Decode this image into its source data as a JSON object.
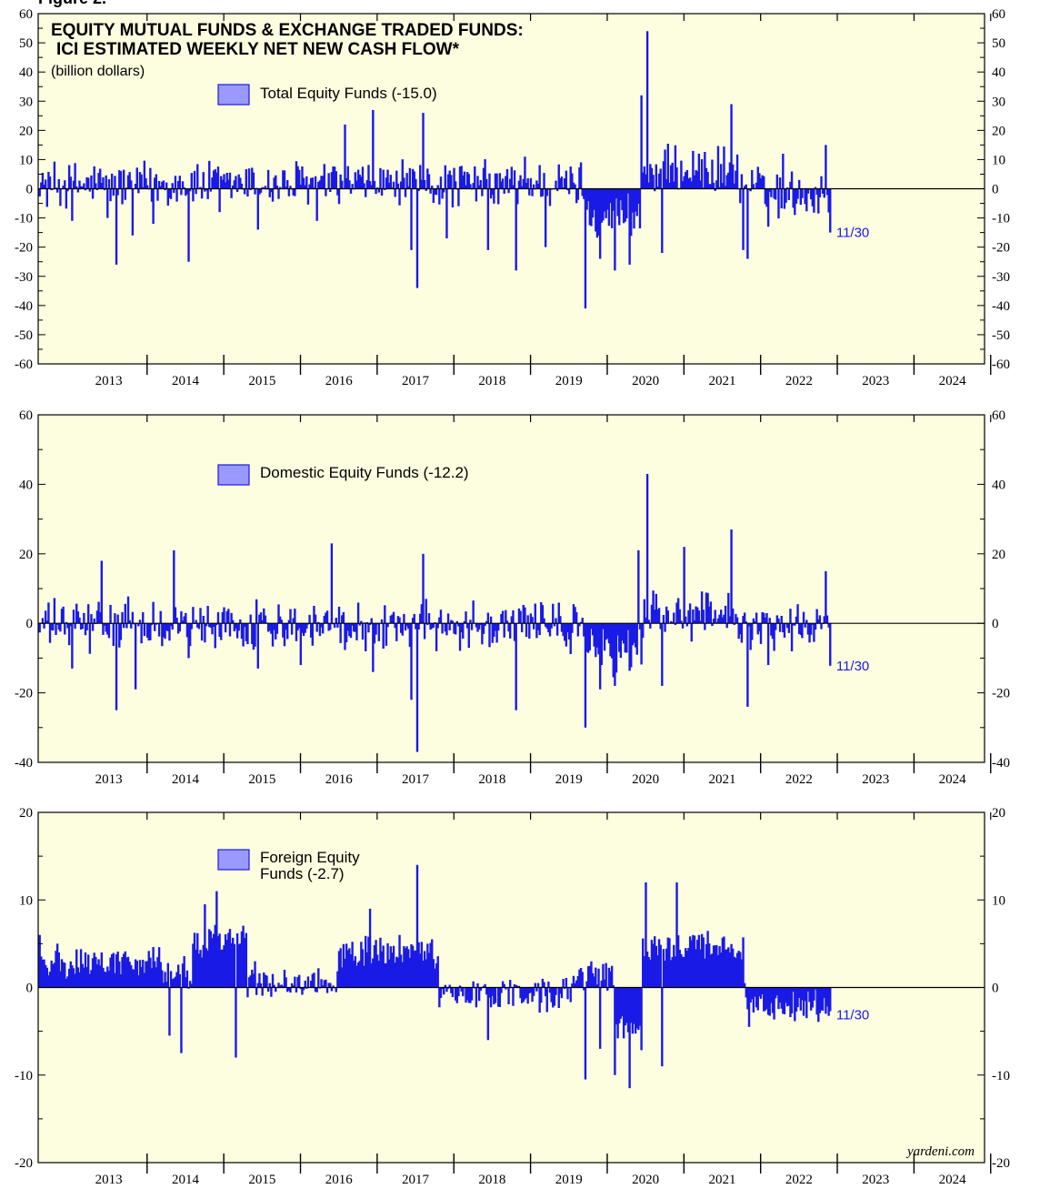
{
  "figure_label": "Figure 2.",
  "credit": "yardeni.com",
  "colors": {
    "bar": "#1a1ae6",
    "panel_bg": "#fdfde0",
    "legend_fill": "#9999ff"
  },
  "chart_data": [
    {
      "type": "bar",
      "title": "EQUITY MUTUAL FUNDS & EXCHANGE TRADED FUNDS:",
      "title2": "ICI ESTIMATED WEEKLY NET NEW CASH FLOW*",
      "subtitle": "(billion dollars)",
      "legend": "Total Equity Funds (-15.0)",
      "end_label": "11/30",
      "ylim": [
        -60,
        60
      ],
      "yticks": [
        60,
        50,
        40,
        30,
        20,
        10,
        0,
        -10,
        -20,
        -30,
        -40,
        -50,
        -60
      ],
      "years": [
        "2013",
        "2014",
        "2015",
        "2016",
        "2017",
        "2018",
        "2019",
        "2020",
        "2021",
        "2022",
        "2023",
        "2024"
      ],
      "xlim": [
        2012.58,
        2024.92
      ],
      "last_date": 2022.915,
      "last_value": -15.0,
      "base_level": 1.5,
      "noise_amp": 7,
      "key_points": [
        [
          2013.02,
          -11
        ],
        [
          2013.48,
          -10
        ],
        [
          2013.6,
          -26
        ],
        [
          2013.82,
          -16
        ],
        [
          2014.08,
          -12
        ],
        [
          2014.55,
          -25
        ],
        [
          2014.95,
          -8
        ],
        [
          2015.45,
          -14
        ],
        [
          2016.22,
          -11
        ],
        [
          2016.58,
          22
        ],
        [
          2016.95,
          27
        ],
        [
          2017.45,
          -21
        ],
        [
          2017.52,
          -34
        ],
        [
          2017.6,
          26
        ],
        [
          2017.9,
          -17
        ],
        [
          2018.45,
          -21
        ],
        [
          2018.82,
          -28
        ],
        [
          2018.93,
          11
        ],
        [
          2019.2,
          -20
        ],
        [
          2019.72,
          -41
        ],
        [
          2019.9,
          -24
        ],
        [
          2020.1,
          -28
        ],
        [
          2020.3,
          -26
        ],
        [
          2020.45,
          32
        ],
        [
          2020.52,
          54
        ],
        [
          2020.72,
          -22
        ],
        [
          2021.2,
          12
        ],
        [
          2021.62,
          29
        ],
        [
          2021.78,
          -21
        ],
        [
          2021.83,
          -24
        ],
        [
          2022.1,
          -13
        ],
        [
          2022.3,
          12
        ],
        [
          2022.85,
          15
        ]
      ]
    },
    {
      "type": "bar",
      "legend": "Domestic Equity Funds (-12.2)",
      "end_label": "11/30",
      "ylim": [
        -40,
        60
      ],
      "yticks": [
        60,
        40,
        20,
        0,
        -20,
        -40
      ],
      "years": [
        "2013",
        "2014",
        "2015",
        "2016",
        "2017",
        "2018",
        "2019",
        "2020",
        "2021",
        "2022",
        "2023",
        "2024"
      ],
      "xlim": [
        2012.58,
        2024.92
      ],
      "last_date": 2022.915,
      "last_value": -12.2,
      "base_level": -0.5,
      "noise_amp": 6,
      "key_points": [
        [
          2013.02,
          -13
        ],
        [
          2013.4,
          18
        ],
        [
          2013.6,
          -25
        ],
        [
          2013.85,
          -19
        ],
        [
          2014.35,
          21
        ],
        [
          2014.55,
          -10
        ],
        [
          2015.45,
          -13
        ],
        [
          2016.0,
          -12
        ],
        [
          2016.4,
          23
        ],
        [
          2016.95,
          -14
        ],
        [
          2017.45,
          -22
        ],
        [
          2017.52,
          -37
        ],
        [
          2017.6,
          20
        ],
        [
          2018.82,
          -25
        ],
        [
          2019.72,
          -30
        ],
        [
          2019.9,
          -19
        ],
        [
          2020.1,
          -18
        ],
        [
          2020.4,
          21
        ],
        [
          2020.52,
          43
        ],
        [
          2020.72,
          -18
        ],
        [
          2021.0,
          22
        ],
        [
          2021.62,
          27
        ],
        [
          2021.83,
          -24
        ],
        [
          2022.1,
          -12
        ],
        [
          2022.85,
          15
        ]
      ]
    },
    {
      "type": "bar",
      "legend": "Foreign Equity",
      "legend2": "Funds (-2.7)",
      "end_label": "11/30",
      "ylim": [
        -20,
        20
      ],
      "yticks": [
        20,
        10,
        0,
        -10,
        -20
      ],
      "years": [
        "2013",
        "2014",
        "2015",
        "2016",
        "2017",
        "2018",
        "2019",
        "2020",
        "2021",
        "2022",
        "2023",
        "2024"
      ],
      "xlim": [
        2012.58,
        2024.92
      ],
      "last_date": 2022.915,
      "last_value": -2.7,
      "base_level": 0,
      "noise_amp": 1.6,
      "key_points": [
        [
          2012.6,
          6
        ],
        [
          2012.95,
          1
        ],
        [
          2013.2,
          4
        ],
        [
          2013.4,
          4
        ],
        [
          2013.75,
          3.5
        ],
        [
          2014.1,
          3
        ],
        [
          2014.3,
          -5.5
        ],
        [
          2014.45,
          -7.5
        ],
        [
          2014.6,
          5
        ],
        [
          2014.75,
          9.5
        ],
        [
          2014.9,
          11
        ],
        [
          2015.15,
          4
        ],
        [
          2015.15,
          -8
        ],
        [
          2015.4,
          3
        ],
        [
          2015.6,
          0.5
        ],
        [
          2016.2,
          -0.5
        ],
        [
          2016.6,
          5
        ],
        [
          2016.9,
          9
        ],
        [
          2017.3,
          6
        ],
        [
          2017.52,
          14
        ],
        [
          2017.65,
          5
        ],
        [
          2018.0,
          0
        ],
        [
          2018.45,
          -6
        ],
        [
          2018.7,
          0
        ],
        [
          2019.2,
          -1
        ],
        [
          2019.5,
          0
        ],
        [
          2019.72,
          -10.5
        ],
        [
          2019.9,
          -7
        ],
        [
          2020.1,
          -10
        ],
        [
          2020.3,
          -11.5
        ],
        [
          2020.5,
          12
        ],
        [
          2020.72,
          -9
        ],
        [
          2020.9,
          12
        ],
        [
          2021.2,
          6
        ],
        [
          2021.6,
          4
        ],
        [
          2021.8,
          0.5
        ],
        [
          2021.85,
          -4.5
        ],
        [
          2022.3,
          -3
        ],
        [
          2022.6,
          -3.5
        ],
        [
          2022.85,
          -3
        ]
      ]
    }
  ]
}
